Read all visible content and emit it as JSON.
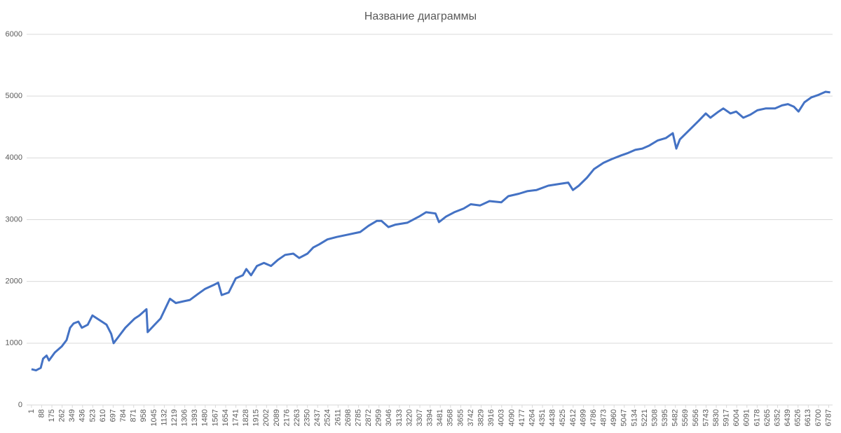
{
  "chart_data": {
    "type": "line",
    "title": "Название диаграммы",
    "x": [
      1,
      40,
      80,
      100,
      130,
      150,
      200,
      260,
      300,
      330,
      360,
      400,
      430,
      480,
      520,
      560,
      600,
      640,
      680,
      700,
      740,
      800,
      880,
      920,
      980,
      990,
      1050,
      1100,
      1150,
      1180,
      1230,
      1300,
      1350,
      1420,
      1480,
      1560,
      1590,
      1620,
      1680,
      1740,
      1800,
      1830,
      1870,
      1920,
      1980,
      2040,
      2100,
      2160,
      2230,
      2280,
      2350,
      2400,
      2450,
      2520,
      2600,
      2700,
      2800,
      2870,
      2940,
      2980,
      3040,
      3100,
      3200,
      3300,
      3360,
      3440,
      3470,
      3530,
      3600,
      3680,
      3740,
      3820,
      3900,
      4000,
      4060,
      4150,
      4220,
      4300,
      4400,
      4500,
      4570,
      4610,
      4660,
      4730,
      4790,
      4870,
      4940,
      5020,
      5080,
      5140,
      5200,
      5260,
      5330,
      5400,
      5460,
      5490,
      5520,
      5600,
      5680,
      5740,
      5780,
      5850,
      5890,
      5950,
      6000,
      6060,
      6120,
      6180,
      6250,
      6330,
      6390,
      6440,
      6490,
      6530,
      6580,
      6640,
      6700,
      6760,
      6800
    ],
    "series": [
      {
        "color": "#4472c4",
        "values": [
          580,
          560,
          600,
          750,
          800,
          720,
          850,
          950,
          1050,
          1250,
          1320,
          1350,
          1250,
          1300,
          1450,
          1400,
          1350,
          1300,
          1150,
          1000,
          1100,
          1250,
          1400,
          1450,
          1550,
          1180,
          1300,
          1400,
          1600,
          1720,
          1650,
          1680,
          1700,
          1800,
          1880,
          1950,
          1980,
          1780,
          1820,
          2050,
          2100,
          2200,
          2100,
          2250,
          2300,
          2250,
          2350,
          2430,
          2450,
          2380,
          2450,
          2550,
          2600,
          2680,
          2720,
          2760,
          2800,
          2900,
          2980,
          2980,
          2880,
          2920,
          2950,
          3050,
          3120,
          3100,
          2960,
          3050,
          3120,
          3180,
          3250,
          3230,
          3300,
          3280,
          3380,
          3420,
          3460,
          3480,
          3550,
          3580,
          3600,
          3480,
          3550,
          3680,
          3820,
          3920,
          3980,
          4040,
          4080,
          4130,
          4150,
          4200,
          4280,
          4320,
          4400,
          4150,
          4300,
          4450,
          4600,
          4720,
          4650,
          4750,
          4800,
          4720,
          4750,
          4650,
          4700,
          4770,
          4800,
          4800,
          4850,
          4870,
          4830,
          4750,
          4900,
          4980,
          5020,
          5070,
          5060
        ]
      }
    ],
    "xlim": [
      -40,
      6820
    ],
    "xticks": [
      1,
      88,
      175,
      262,
      349,
      436,
      523,
      610,
      697,
      784,
      871,
      958,
      1045,
      1132,
      1219,
      1306,
      1393,
      1480,
      1567,
      1654,
      1741,
      1828,
      1915,
      2002,
      2089,
      2176,
      2263,
      2350,
      2437,
      2524,
      2611,
      2698,
      2785,
      2872,
      2959,
      3046,
      3133,
      3220,
      3307,
      3394,
      3481,
      3568,
      3655,
      3742,
      3829,
      3916,
      4003,
      4090,
      4177,
      4264,
      4351,
      4438,
      4525,
      4612,
      4699,
      4786,
      4873,
      4960,
      5047,
      5134,
      5221,
      5308,
      5395,
      5482,
      5569,
      5656,
      5743,
      5830,
      5917,
      6004,
      6091,
      6178,
      6265,
      6352,
      6439,
      6526,
      6613,
      6700,
      6787
    ],
    "ylim": [
      0,
      6000
    ],
    "yticks": [
      0,
      1000,
      2000,
      3000,
      4000,
      5000,
      6000
    ],
    "grid": true
  }
}
